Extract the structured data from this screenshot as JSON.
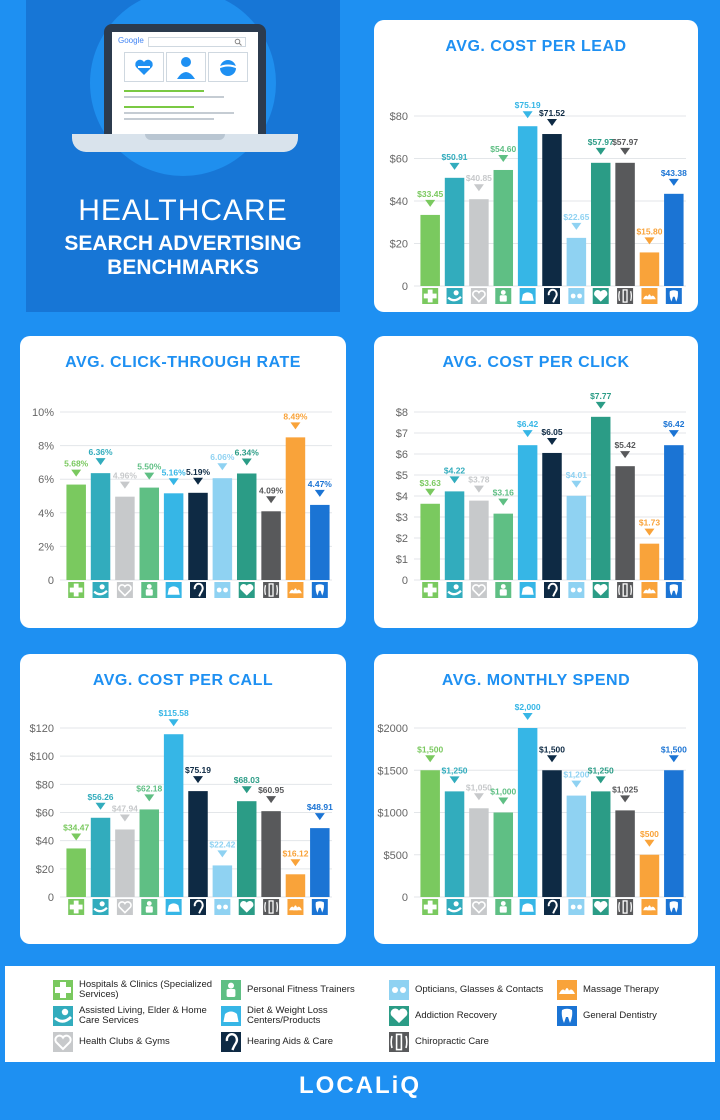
{
  "hero": {
    "title_line1": "HEALTHCARE",
    "title_line2": "SEARCH ADVERTISING",
    "title_line3": "BENCHMARKS",
    "search_logo": "Google",
    "search_icon": "magnifier-icon",
    "screen_icons": [
      "heart-dumbbell-icon",
      "doctor-icon",
      "apple-tape-icon"
    ]
  },
  "categories": [
    "Hospitals & Clinics (Specialized Services)",
    "Assisted Living, Elder & Home Care Services",
    "Health Clubs & Gyms",
    "Personal Fitness Trainers",
    "Diet & Weight Loss Centers/Products",
    "Hearing Aids & Care",
    "Opticians, Glasses & Contacts",
    "Addiction Recovery",
    "Chiropractic Care",
    "Massage Therapy",
    "General Dentistry"
  ],
  "colors": [
    "#7ac95f",
    "#32acbd",
    "#c7c9cb",
    "#5fbf84",
    "#36b6e6",
    "#0e2a44",
    "#8fd2f2",
    "#2b9c86",
    "#58595b",
    "#f9a33a",
    "#1b74d4"
  ],
  "icons": [
    "plus-cross-icon",
    "caring-hand-icon",
    "heart-hand-icon",
    "trainer-icon",
    "scale-icon",
    "ear-icon",
    "glasses-icon",
    "heart-icon",
    "spine-icon",
    "lotus-icon",
    "tooth-icon"
  ],
  "chart_data": [
    {
      "type": "bar",
      "title": "AVG. COST PER LEAD",
      "ylim": [
        0,
        80
      ],
      "yticks": [
        "0",
        "$20",
        "$40",
        "$60",
        "$80"
      ],
      "values": [
        33.45,
        50.91,
        40.85,
        54.6,
        75.19,
        71.52,
        22.65,
        57.97,
        57.97,
        15.8,
        43.38
      ],
      "labels": [
        "$33.45",
        "$50.91",
        "$40.85",
        "$54.60",
        "$75.19",
        "$71.52",
        "$22.65",
        "$57.97",
        "$57.97",
        "$15.80",
        "$43.38"
      ]
    },
    {
      "type": "bar",
      "title": "AVG. CLICK-THROUGH RATE",
      "ylim": [
        0,
        10
      ],
      "yticks": [
        "0",
        "2%",
        "4%",
        "6%",
        "8%",
        "10%"
      ],
      "values": [
        5.68,
        6.36,
        4.96,
        5.5,
        5.16,
        5.19,
        6.06,
        6.34,
        4.09,
        8.49,
        4.47
      ],
      "labels": [
        "5.68%",
        "6.36%",
        "4.96%",
        "5.50%",
        "5.16%",
        "5.19%",
        "6.06%",
        "6.34%",
        "4.09%",
        "8.49%",
        "4.47%"
      ]
    },
    {
      "type": "bar",
      "title": "AVG. COST PER CLICK",
      "ylim": [
        0,
        8
      ],
      "yticks": [
        "0",
        "$1",
        "$2",
        "$3",
        "$4",
        "$5",
        "$6",
        "$7",
        "$8"
      ],
      "values": [
        3.63,
        4.22,
        3.78,
        3.16,
        6.42,
        6.05,
        4.01,
        7.77,
        5.42,
        1.73,
        6.42
      ],
      "labels": [
        "$3.63",
        "$4.22",
        "$3.78",
        "$3.16",
        "$6.42",
        "$6.05",
        "$4.01",
        "$7.77",
        "$5.42",
        "$1.73",
        "$6.42"
      ]
    },
    {
      "type": "bar",
      "title": "AVG. COST PER CALL",
      "ylim": [
        0,
        120
      ],
      "yticks": [
        "0",
        "$20",
        "$40",
        "$60",
        "$80",
        "$100",
        "$120"
      ],
      "values": [
        34.47,
        56.26,
        47.94,
        62.18,
        115.58,
        75.19,
        22.42,
        68.03,
        60.95,
        16.12,
        48.91
      ],
      "labels": [
        "$34.47",
        "$56.26",
        "$47.94",
        "$62.18",
        "$115.58",
        "$75.19",
        "$22.42",
        "$68.03",
        "$60.95",
        "$16.12",
        "$48.91"
      ]
    },
    {
      "type": "bar",
      "title": "AVG. MONTHLY SPEND",
      "ylim": [
        0,
        2000
      ],
      "yticks": [
        "0",
        "$500",
        "$1000",
        "$1500",
        "$2000"
      ],
      "values": [
        1500,
        1250,
        1050,
        1000,
        2000,
        1500,
        1200,
        1250,
        1025,
        500,
        1500
      ],
      "labels": [
        "$1,500",
        "$1,250",
        "$1,050",
        "$1,000",
        "$2,000",
        "$1,500",
        "$1,200",
        "$1,250",
        "$1,025",
        "$500",
        "$1,500"
      ]
    }
  ],
  "legend": {
    "items": [
      {
        "label": "Hospitals & Clinics (Specialized Services)"
      },
      {
        "label": "Assisted Living, Elder & Home Care Services"
      },
      {
        "label": "Health Clubs & Gyms"
      },
      {
        "label": "Personal Fitness Trainers"
      },
      {
        "label": "Diet & Weight Loss Centers/Products"
      },
      {
        "label": "Hearing Aids & Care"
      },
      {
        "label": "Opticians, Glasses & Contacts"
      },
      {
        "label": "Addiction Recovery"
      },
      {
        "label": "Chiropractic Care"
      },
      {
        "label": "Massage Therapy"
      },
      {
        "label": "General Dentistry"
      }
    ]
  },
  "brand": {
    "name": "LOCALiQ"
  }
}
